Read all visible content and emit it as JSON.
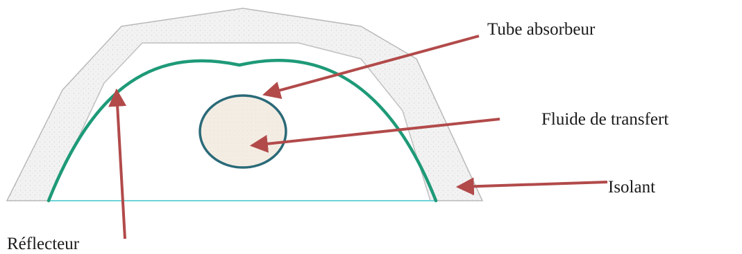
{
  "labels": {
    "absorber_tube": "Tube absorbeur",
    "transfer_fluid": "Fluide de transfert",
    "insulation": "Isolant",
    "reflector": "Réflecteur"
  },
  "colors": {
    "reflector": "#1e9a78",
    "absorber_tube": "#2a6a78",
    "fluid": "#f3ece3",
    "insulation_fill": "#f1f1f1",
    "insulation_stroke": "#b9b9b9",
    "base_line": "#6fd3da",
    "arrow": "#b24a4a",
    "text": "#1a1a1a"
  }
}
